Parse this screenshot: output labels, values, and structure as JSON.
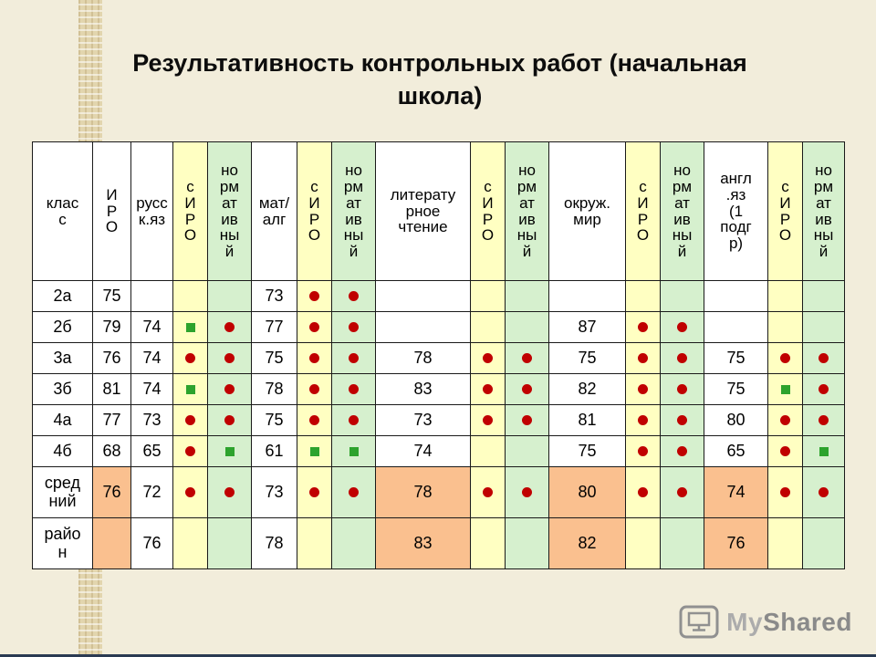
{
  "title": "Результативность контрольных работ (начальная\nшкола)",
  "watermark": {
    "my": "My",
    "shared": "Shared"
  },
  "colors": {
    "yellow": "#FFFFC2",
    "green": "#D6F0CE",
    "orange": "#FAC08F",
    "red": "#C00000",
    "greensq": "#2DA32D",
    "slidebg": "#F2EDDB",
    "stripbg": "#E2D5AE",
    "border": "#1A1A1A",
    "bottomline": "#2A3A52"
  },
  "markers": {
    "dot": "red-circle-marker",
    "sq": "green-square-marker"
  },
  "table": {
    "columns": [
      {
        "label": "клас\nс",
        "bg": "white"
      },
      {
        "label": "И\nР\nО",
        "bg": "white"
      },
      {
        "label": "русс\nк.яз",
        "bg": "white"
      },
      {
        "label": "с\nИ\nР\nО",
        "bg": "yellow",
        "accent": "red"
      },
      {
        "label": "но\nрм\nат\nив\nны\nй",
        "bg": "green"
      },
      {
        "label": "мат/\nалг",
        "bg": "white"
      },
      {
        "label": "с\nИ\nР\nО",
        "bg": "yellow",
        "accent": "red"
      },
      {
        "label": "но\nрм\nат\nив\nны\nй",
        "bg": "green"
      },
      {
        "label": "литерату\nрное\nчтение",
        "bg": "white"
      },
      {
        "label": "с\nИ\nР\nО",
        "bg": "yellow",
        "accent": "red"
      },
      {
        "label": "но\nрм\nат\nив\nны\nй",
        "bg": "green"
      },
      {
        "label": "окруж.\nмир",
        "bg": "white"
      },
      {
        "label": "с\nИ\nР\nО",
        "bg": "yellow",
        "accent": "red"
      },
      {
        "label": "но\nрм\nат\nив\nны\nй",
        "bg": "green"
      },
      {
        "label": "англ\n.яз\n(1\nподг\nр)",
        "bg": "white"
      },
      {
        "label": "с\nИ\nР\nО",
        "bg": "yellow",
        "accent": "red"
      },
      {
        "label": "но\nрм\nат\nив\nны\nй",
        "bg": "green"
      }
    ],
    "rows": [
      {
        "label": "2а",
        "cells": [
          {
            "text": "75"
          },
          {},
          {},
          {},
          {
            "text": "73"
          },
          {
            "mark": "dot"
          },
          {
            "mark": "dot"
          },
          {},
          {},
          {},
          {},
          {},
          {},
          {},
          {},
          {}
        ]
      },
      {
        "label": "2б",
        "cells": [
          {
            "text": "79"
          },
          {
            "text": "74"
          },
          {
            "mark": "sq"
          },
          {
            "mark": "dot"
          },
          {
            "text": "77"
          },
          {
            "mark": "dot"
          },
          {
            "mark": "dot"
          },
          {},
          {},
          {},
          {
            "text": "87"
          },
          {
            "mark": "dot"
          },
          {
            "mark": "dot"
          },
          {},
          {},
          {}
        ]
      },
      {
        "label": "3а",
        "cells": [
          {
            "text": "76"
          },
          {
            "text": "74"
          },
          {
            "mark": "dot"
          },
          {
            "mark": "dot"
          },
          {
            "text": "75"
          },
          {
            "mark": "dot"
          },
          {
            "mark": "dot"
          },
          {
            "text": "78"
          },
          {
            "mark": "dot"
          },
          {
            "mark": "dot"
          },
          {
            "text": "75"
          },
          {
            "mark": "dot"
          },
          {
            "mark": "dot"
          },
          {
            "text": "75"
          },
          {
            "mark": "dot"
          },
          {
            "mark": "dot"
          }
        ]
      },
      {
        "label": "3б",
        "cells": [
          {
            "text": "81"
          },
          {
            "text": "74"
          },
          {
            "mark": "sq"
          },
          {
            "mark": "dot"
          },
          {
            "text": "78"
          },
          {
            "mark": "dot"
          },
          {
            "mark": "dot"
          },
          {
            "text": "83"
          },
          {
            "mark": "dot"
          },
          {
            "mark": "dot"
          },
          {
            "text": "82"
          },
          {
            "mark": "dot"
          },
          {
            "mark": "dot"
          },
          {
            "text": "75"
          },
          {
            "mark": "sq"
          },
          {
            "mark": "dot"
          }
        ]
      },
      {
        "label": "4а",
        "cells": [
          {
            "text": "77"
          },
          {
            "text": "73"
          },
          {
            "mark": "dot"
          },
          {
            "mark": "dot"
          },
          {
            "text": "75"
          },
          {
            "mark": "dot"
          },
          {
            "mark": "dot"
          },
          {
            "text": "73"
          },
          {
            "mark": "dot"
          },
          {
            "mark": "dot"
          },
          {
            "text": "81"
          },
          {
            "mark": "dot"
          },
          {
            "mark": "dot"
          },
          {
            "text": "80"
          },
          {
            "mark": "dot"
          },
          {
            "mark": "dot"
          }
        ]
      },
      {
        "label": "4б",
        "cells": [
          {
            "text": "68"
          },
          {
            "text": "65"
          },
          {
            "mark": "dot"
          },
          {
            "mark": "sq"
          },
          {
            "text": "61"
          },
          {
            "mark": "sq"
          },
          {
            "mark": "sq"
          },
          {
            "text": "74"
          },
          {},
          {},
          {
            "text": "75"
          },
          {
            "mark": "dot"
          },
          {
            "mark": "dot"
          },
          {
            "text": "65"
          },
          {
            "mark": "dot"
          },
          {
            "mark": "sq"
          }
        ]
      },
      {
        "label": "сред\nний",
        "summary": true,
        "cells": [
          {
            "text": "76",
            "bg": "orange"
          },
          {
            "text": "72"
          },
          {
            "mark": "dot"
          },
          {
            "mark": "dot"
          },
          {
            "text": "73"
          },
          {
            "mark": "dot"
          },
          {
            "mark": "dot"
          },
          {
            "text": "78",
            "bg": "orange"
          },
          {
            "mark": "dot"
          },
          {
            "mark": "dot"
          },
          {
            "text": "80",
            "bg": "orange"
          },
          {
            "mark": "dot"
          },
          {
            "mark": "dot"
          },
          {
            "text": "74",
            "bg": "orange"
          },
          {
            "mark": "dot"
          },
          {
            "mark": "dot"
          }
        ]
      },
      {
        "label": "райо\nн",
        "summary": true,
        "cells": [
          {
            "bg": "orange"
          },
          {
            "text": "76"
          },
          {},
          {},
          {
            "text": "78"
          },
          {},
          {},
          {
            "text": "83",
            "bg": "orange"
          },
          {},
          {},
          {
            "text": "82",
            "bg": "orange"
          },
          {},
          {},
          {
            "text": "76",
            "bg": "orange"
          },
          {},
          {}
        ]
      }
    ]
  }
}
